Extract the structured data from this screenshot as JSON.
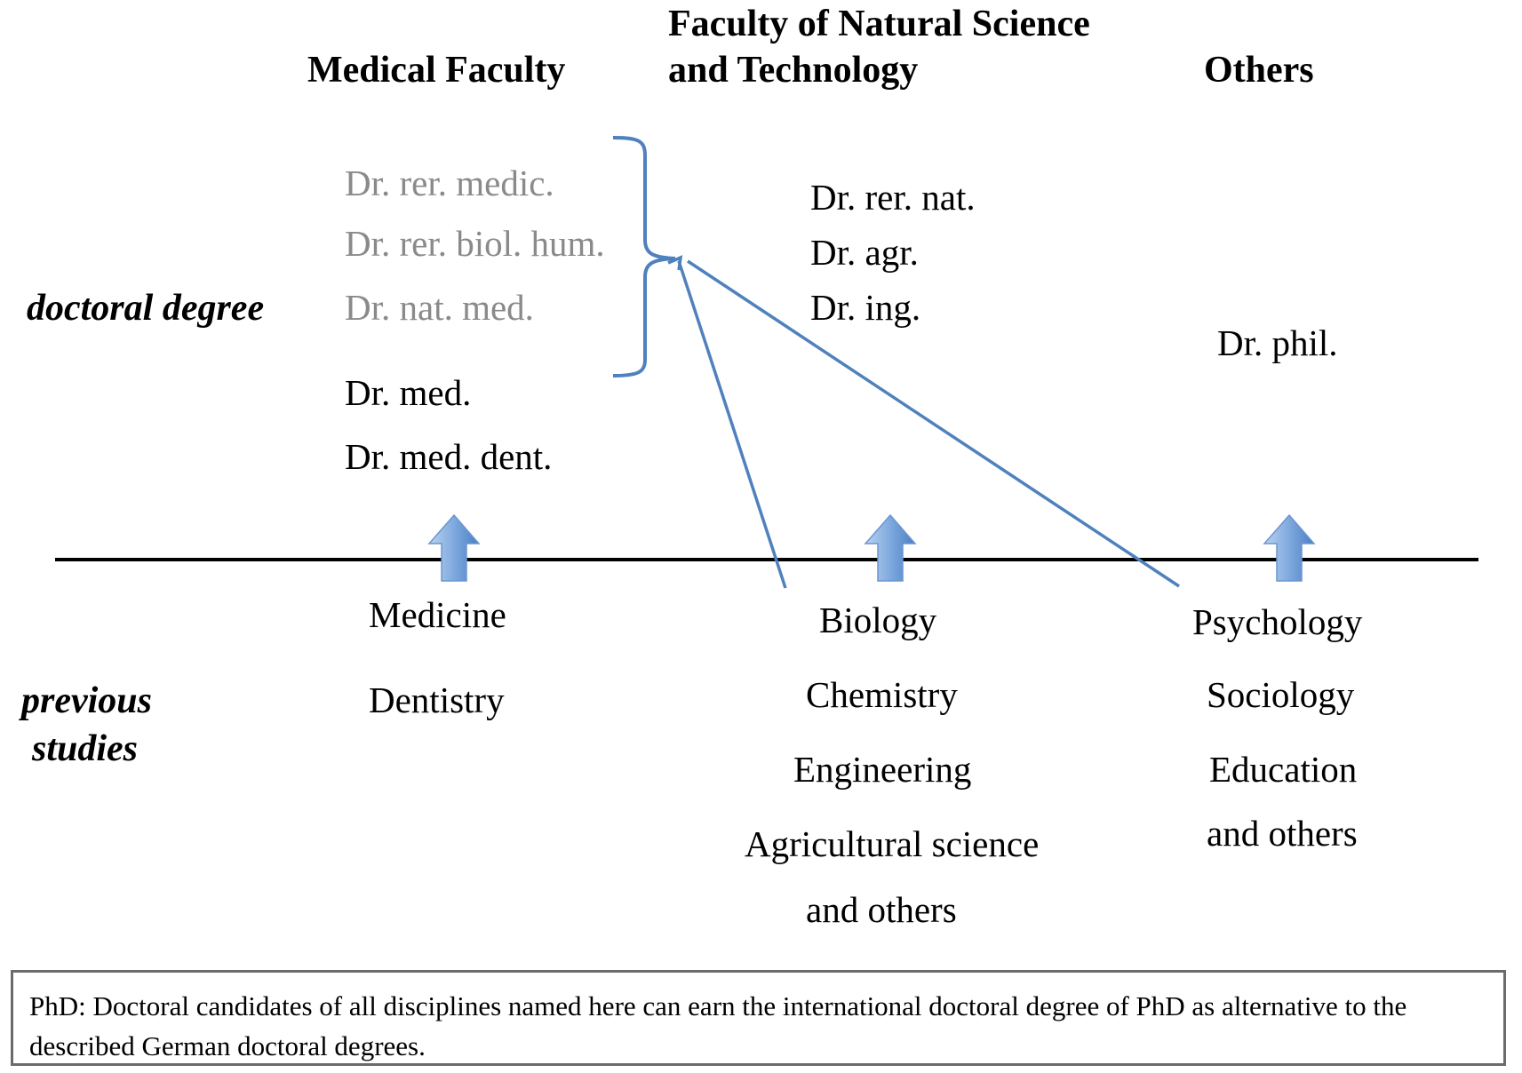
{
  "columns": {
    "medical": {
      "heading": "Medical Faculty"
    },
    "natural": {
      "heading_line1": "Faculty of Natural Science",
      "heading_line2": "and Technology"
    },
    "others": {
      "heading": "Others"
    }
  },
  "row_labels": {
    "doctoral": "doctoral degree",
    "previous_line1": "previous",
    "previous_line2": "studies"
  },
  "degrees": {
    "medical_grey": [
      "Dr. rer. medic.",
      "Dr. rer. biol. hum.",
      "Dr. nat. med."
    ],
    "medical_black": [
      "Dr. med.",
      "Dr. med. dent."
    ],
    "natural": [
      "Dr. rer. nat.",
      "Dr. agr.",
      "Dr. ing."
    ],
    "others": [
      "Dr. phil."
    ]
  },
  "studies": {
    "medical": [
      "Medicine",
      "Dentistry"
    ],
    "natural": [
      "Biology",
      "Chemistry",
      "Engineering",
      "Agricultural science",
      "and others"
    ],
    "others": [
      "Psychology",
      "Sociology",
      "Education",
      "and others"
    ]
  },
  "footnote": "PhD: Doctoral candidates of all disciplines named here can earn the international doctoral degree of PhD as alternative to the described German doctoral degrees.",
  "colors": {
    "grey_text": "#8a8a8a",
    "arrow_blue": "#4f81bd",
    "block_arrow_light": "#b9d3f0",
    "block_arrow_dark": "#4a7fc4",
    "divider": "#000000"
  }
}
